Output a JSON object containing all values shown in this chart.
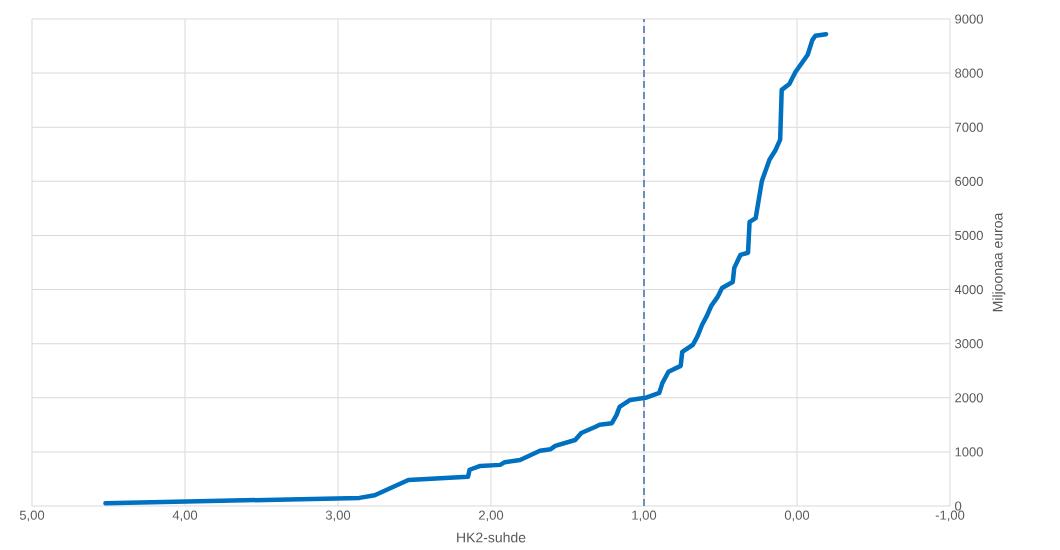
{
  "chart_data": {
    "type": "line",
    "xlabel": "HK2-suhde",
    "ylabel": "Miljoonaa euroa",
    "x": [
      4.52,
      2.86,
      2.76,
      2.54,
      2.15,
      2.14,
      2.07,
      1.94,
      1.91,
      1.81,
      1.68,
      1.61,
      1.58,
      1.45,
      1.41,
      1.32,
      1.29,
      1.21,
      1.18,
      1.16,
      1.09,
      0.99,
      0.9,
      0.88,
      0.84,
      0.76,
      0.75,
      0.68,
      0.65,
      0.62,
      0.59,
      0.56,
      0.52,
      0.49,
      0.42,
      0.41,
      0.37,
      0.32,
      0.31,
      0.27,
      0.25,
      0.23,
      0.18,
      0.14,
      0.11,
      0.1,
      0.05,
      0.01,
      -0.07,
      -0.1,
      -0.12,
      -0.19
    ],
    "series": [
      {
        "color": "#0070c0",
        "values": [
          50,
          150,
          200,
          480,
          540,
          670,
          740,
          760,
          810,
          850,
          1020,
          1050,
          1110,
          1220,
          1350,
          1460,
          1500,
          1530,
          1680,
          1830,
          1960,
          2000,
          2090,
          2270,
          2480,
          2590,
          2850,
          2980,
          3140,
          3350,
          3510,
          3700,
          3860,
          4030,
          4140,
          4400,
          4640,
          4680,
          5250,
          5320,
          5660,
          6000,
          6400,
          6580,
          6770,
          7690,
          7800,
          8020,
          8340,
          8610,
          8690,
          8720
        ]
      }
    ],
    "xlim": [
      5,
      -1
    ],
    "xticks": [
      {
        "value": 5,
        "label": "5,00"
      },
      {
        "value": 4,
        "label": "4,00"
      },
      {
        "value": 3,
        "label": "3,00"
      },
      {
        "value": 2,
        "label": "2,00"
      },
      {
        "value": 1,
        "label": "1,00"
      },
      {
        "value": 0,
        "label": "0,00"
      },
      {
        "value": -1,
        "label": "-1,00"
      }
    ],
    "ylim": [
      0,
      9000
    ],
    "yticks": [
      0,
      1000,
      2000,
      3000,
      4000,
      5000,
      6000,
      7000,
      8000,
      9000
    ],
    "grid": true,
    "ref_lines": [
      {
        "axis": "x",
        "value": 1,
        "color": "#6a8fb8",
        "line_style": "dashed"
      }
    ]
  }
}
